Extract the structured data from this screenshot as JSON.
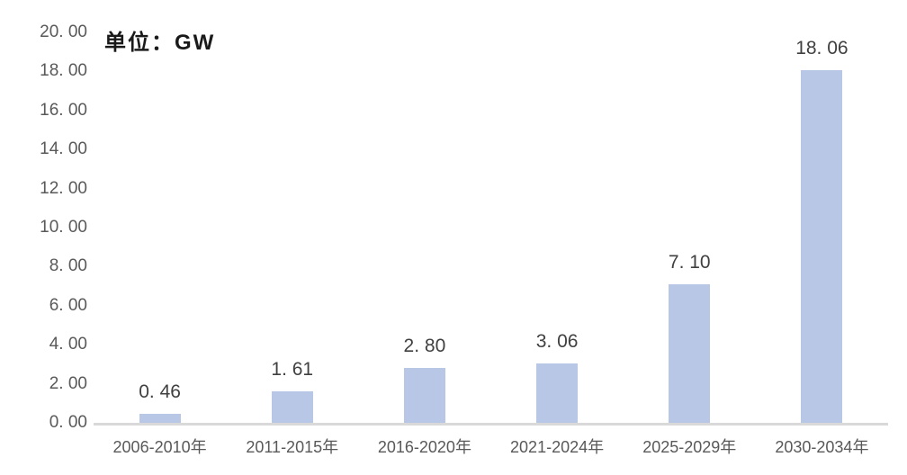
{
  "chart_data": {
    "type": "bar",
    "title": "",
    "unit_annotation": "单位：GW",
    "categories": [
      "2006-2010年",
      "2011-2015年",
      "2016-2020年",
      "2021-2024年",
      "2025-2029年",
      "2030-2034年"
    ],
    "values": [
      0.46,
      1.61,
      2.8,
      3.06,
      7.1,
      18.06
    ],
    "value_labels": [
      "0. 46",
      "1. 61",
      "2. 80",
      "3. 06",
      "7. 10",
      "18. 06"
    ],
    "y_ticks": [
      20,
      18,
      16,
      14,
      12,
      10,
      8,
      6,
      4,
      2,
      0
    ],
    "y_tick_labels": [
      "20. 00",
      "18. 00",
      "16. 00",
      "14. 00",
      "12. 00",
      "10. 00",
      "8. 00",
      "6. 00",
      "4. 00",
      "2. 00",
      "0. 00"
    ],
    "ylim": [
      0,
      20
    ],
    "xlabel": "",
    "ylabel": "",
    "grid": false,
    "legend": false,
    "colors": {
      "bar_fill": "#b8c7e6",
      "axis_line": "#d9d9d9",
      "tick_text": "#595959",
      "value_label_text": "#404040",
      "annotation_text": "#1a1a1a",
      "background": "#ffffff"
    }
  }
}
